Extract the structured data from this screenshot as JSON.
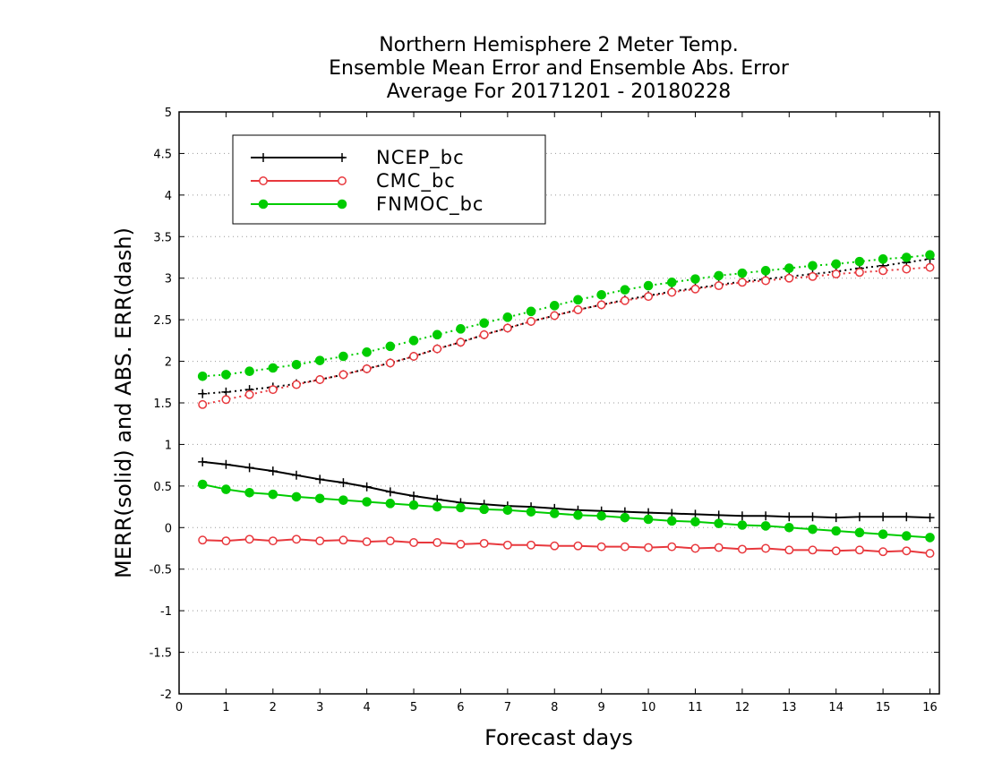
{
  "chart_data": {
    "type": "line",
    "title": [
      "Northern Hemisphere 2 Meter Temp.",
      "Ensemble Mean Error and Ensemble Abs. Error",
      "Average For 20171201 - 20180228"
    ],
    "xlabel": "Forecast days",
    "ylabel": "MERR(solid) and ABS. ERR(dash)",
    "xlim": [
      0,
      16.2
    ],
    "ylim": [
      -2,
      5
    ],
    "xticks": [
      0,
      1,
      2,
      3,
      4,
      5,
      6,
      7,
      8,
      9,
      10,
      11,
      12,
      13,
      14,
      15,
      16
    ],
    "yticks": [
      -2,
      -1.5,
      -1,
      -0.5,
      0,
      0.5,
      1,
      1.5,
      2,
      2.5,
      3,
      3.5,
      4,
      4.5,
      5
    ],
    "grid": "horizontal dotted",
    "legend_position": "top-left",
    "x": [
      0.5,
      1.0,
      1.5,
      2.0,
      2.5,
      3.0,
      3.5,
      4.0,
      4.5,
      5.0,
      5.5,
      6.0,
      6.5,
      7.0,
      7.5,
      8.0,
      8.5,
      9.0,
      9.5,
      10.0,
      10.5,
      11.0,
      11.5,
      12.0,
      12.5,
      13.0,
      13.5,
      14.0,
      14.5,
      15.0,
      15.5,
      16.0
    ],
    "series": [
      {
        "name": "NCEP_bc",
        "color": "#000000",
        "marker": "plus",
        "merr": [
          0.79,
          0.76,
          0.72,
          0.68,
          0.63,
          0.58,
          0.54,
          0.49,
          0.43,
          0.38,
          0.34,
          0.3,
          0.28,
          0.26,
          0.25,
          0.23,
          0.21,
          0.2,
          0.19,
          0.18,
          0.17,
          0.16,
          0.15,
          0.14,
          0.14,
          0.13,
          0.13,
          0.12,
          0.13,
          0.13,
          0.13,
          0.12
        ],
        "abs_err": [
          1.61,
          1.63,
          1.66,
          1.69,
          1.73,
          1.78,
          1.84,
          1.91,
          1.98,
          2.06,
          2.15,
          2.23,
          2.32,
          2.4,
          2.48,
          2.55,
          2.62,
          2.68,
          2.74,
          2.79,
          2.84,
          2.88,
          2.92,
          2.96,
          2.99,
          3.02,
          3.05,
          3.08,
          3.12,
          3.15,
          3.19,
          3.23
        ]
      },
      {
        "name": "CMC_bc",
        "color": "#e8383d",
        "marker": "open-circle",
        "merr": [
          -0.15,
          -0.16,
          -0.14,
          -0.16,
          -0.14,
          -0.16,
          -0.15,
          -0.17,
          -0.16,
          -0.18,
          -0.18,
          -0.2,
          -0.19,
          -0.21,
          -0.21,
          -0.22,
          -0.22,
          -0.23,
          -0.23,
          -0.24,
          -0.23,
          -0.25,
          -0.24,
          -0.26,
          -0.25,
          -0.27,
          -0.27,
          -0.28,
          -0.27,
          -0.29,
          -0.28,
          -0.31
        ],
        "abs_err": [
          1.48,
          1.54,
          1.6,
          1.66,
          1.72,
          1.78,
          1.84,
          1.91,
          1.98,
          2.06,
          2.15,
          2.23,
          2.32,
          2.4,
          2.48,
          2.55,
          2.62,
          2.68,
          2.73,
          2.78,
          2.83,
          2.87,
          2.91,
          2.95,
          2.97,
          3.0,
          3.02,
          3.05,
          3.07,
          3.09,
          3.11,
          3.13
        ]
      },
      {
        "name": "FNMOC_bc",
        "color": "#00cc00",
        "marker": "filled-circle",
        "merr": [
          0.52,
          0.46,
          0.42,
          0.4,
          0.37,
          0.35,
          0.33,
          0.31,
          0.29,
          0.27,
          0.25,
          0.24,
          0.22,
          0.21,
          0.19,
          0.17,
          0.15,
          0.14,
          0.12,
          0.1,
          0.08,
          0.07,
          0.05,
          0.03,
          0.02,
          0.0,
          -0.02,
          -0.04,
          -0.06,
          -0.08,
          -0.1,
          -0.12
        ],
        "abs_err": [
          1.82,
          1.84,
          1.88,
          1.92,
          1.96,
          2.01,
          2.06,
          2.11,
          2.18,
          2.25,
          2.32,
          2.39,
          2.46,
          2.53,
          2.6,
          2.67,
          2.74,
          2.8,
          2.86,
          2.91,
          2.95,
          2.99,
          3.03,
          3.06,
          3.09,
          3.12,
          3.15,
          3.17,
          3.2,
          3.23,
          3.25,
          3.28
        ]
      }
    ]
  }
}
